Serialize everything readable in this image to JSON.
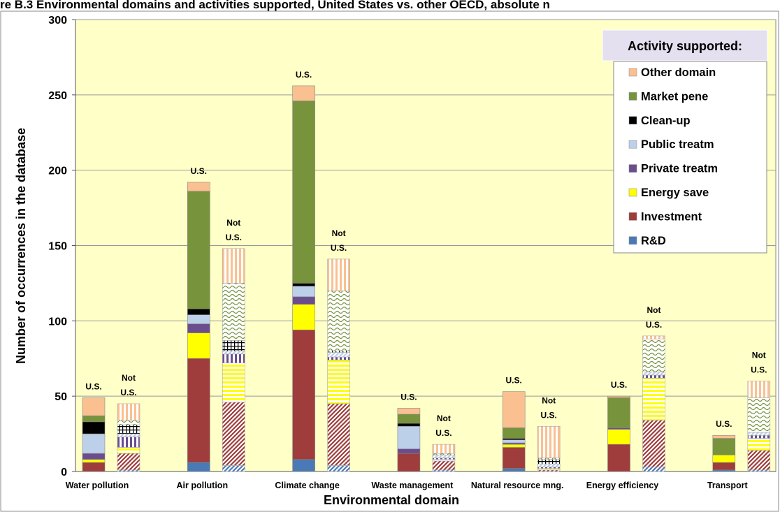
{
  "chart_data": {
    "type": "stacked_bar_pairs",
    "title": "re B.3 Environmental domains and activities supported, United States vs. other OECD, absolute n",
    "x_label": "Environmental domain",
    "y_label": "Number of occurrences in the database",
    "legend_title": "Activity supported:",
    "bar_labels": [
      "U.S.",
      "Not U.S."
    ],
    "categories": [
      "Water pollution",
      "Air pollution",
      "Climate change",
      "Waste management",
      "Natural resource mng.",
      "Energy efficiency",
      "Transport"
    ],
    "ylim": [
      0,
      300
    ],
    "yticks": [
      0,
      50,
      100,
      150,
      200,
      250,
      300
    ],
    "grid": true,
    "background": "#ffffc8",
    "series": [
      {
        "name": "R&D",
        "color": "#4a7ab5",
        "pattern": "diagonal",
        "values": [
          0,
          6,
          8,
          0,
          2,
          0,
          1
        ],
        "values_not_us": [
          1,
          4,
          4,
          1,
          0,
          3,
          1
        ]
      },
      {
        "name": "Investment",
        "color": "#9e3d3b",
        "pattern": "diagonal",
        "values": [
          6,
          69,
          86,
          12,
          14,
          18,
          5
        ],
        "values_not_us": [
          11,
          42,
          41,
          6,
          1,
          31,
          13
        ]
      },
      {
        "name": "Energy save",
        "color": "#ffff00",
        "pattern": "horizontal",
        "values": [
          2,
          17,
          17,
          0,
          2,
          10,
          5
        ],
        "values_not_us": [
          4,
          26,
          29,
          1,
          1,
          28,
          8
        ]
      },
      {
        "name": "Private treatm",
        "color": "#6b4d8f",
        "pattern": "vertical",
        "values": [
          4,
          6,
          5,
          3,
          1,
          1,
          0
        ],
        "values_not_us": [
          7,
          6,
          2,
          1,
          1,
          2,
          2
        ]
      },
      {
        "name": "Public treatm",
        "color": "#bdd0ea",
        "pattern": "diagonal",
        "values": [
          13,
          6,
          7,
          15,
          2,
          0,
          0
        ],
        "values_not_us": [
          2,
          2,
          3,
          2,
          2,
          2,
          2
        ]
      },
      {
        "name": "Clean-up",
        "color": "#000000",
        "pattern": "grid",
        "values": [
          8,
          4,
          2,
          2,
          1,
          0,
          0
        ],
        "values_not_us": [
          6,
          7,
          1,
          0,
          3,
          0,
          0
        ]
      },
      {
        "name": "Market pene",
        "color": "#77933c",
        "pattern": "wave",
        "values": [
          4,
          78,
          121,
          6,
          7,
          20,
          11
        ],
        "values_not_us": [
          3,
          38,
          40,
          1,
          1,
          22,
          23
        ]
      },
      {
        "name": "Other domain",
        "color": "#fac090",
        "pattern": "vertical",
        "values": [
          12,
          6,
          10,
          4,
          24,
          1,
          2
        ],
        "values_not_us": [
          11,
          23,
          21,
          6,
          21,
          2,
          11
        ]
      }
    ]
  }
}
